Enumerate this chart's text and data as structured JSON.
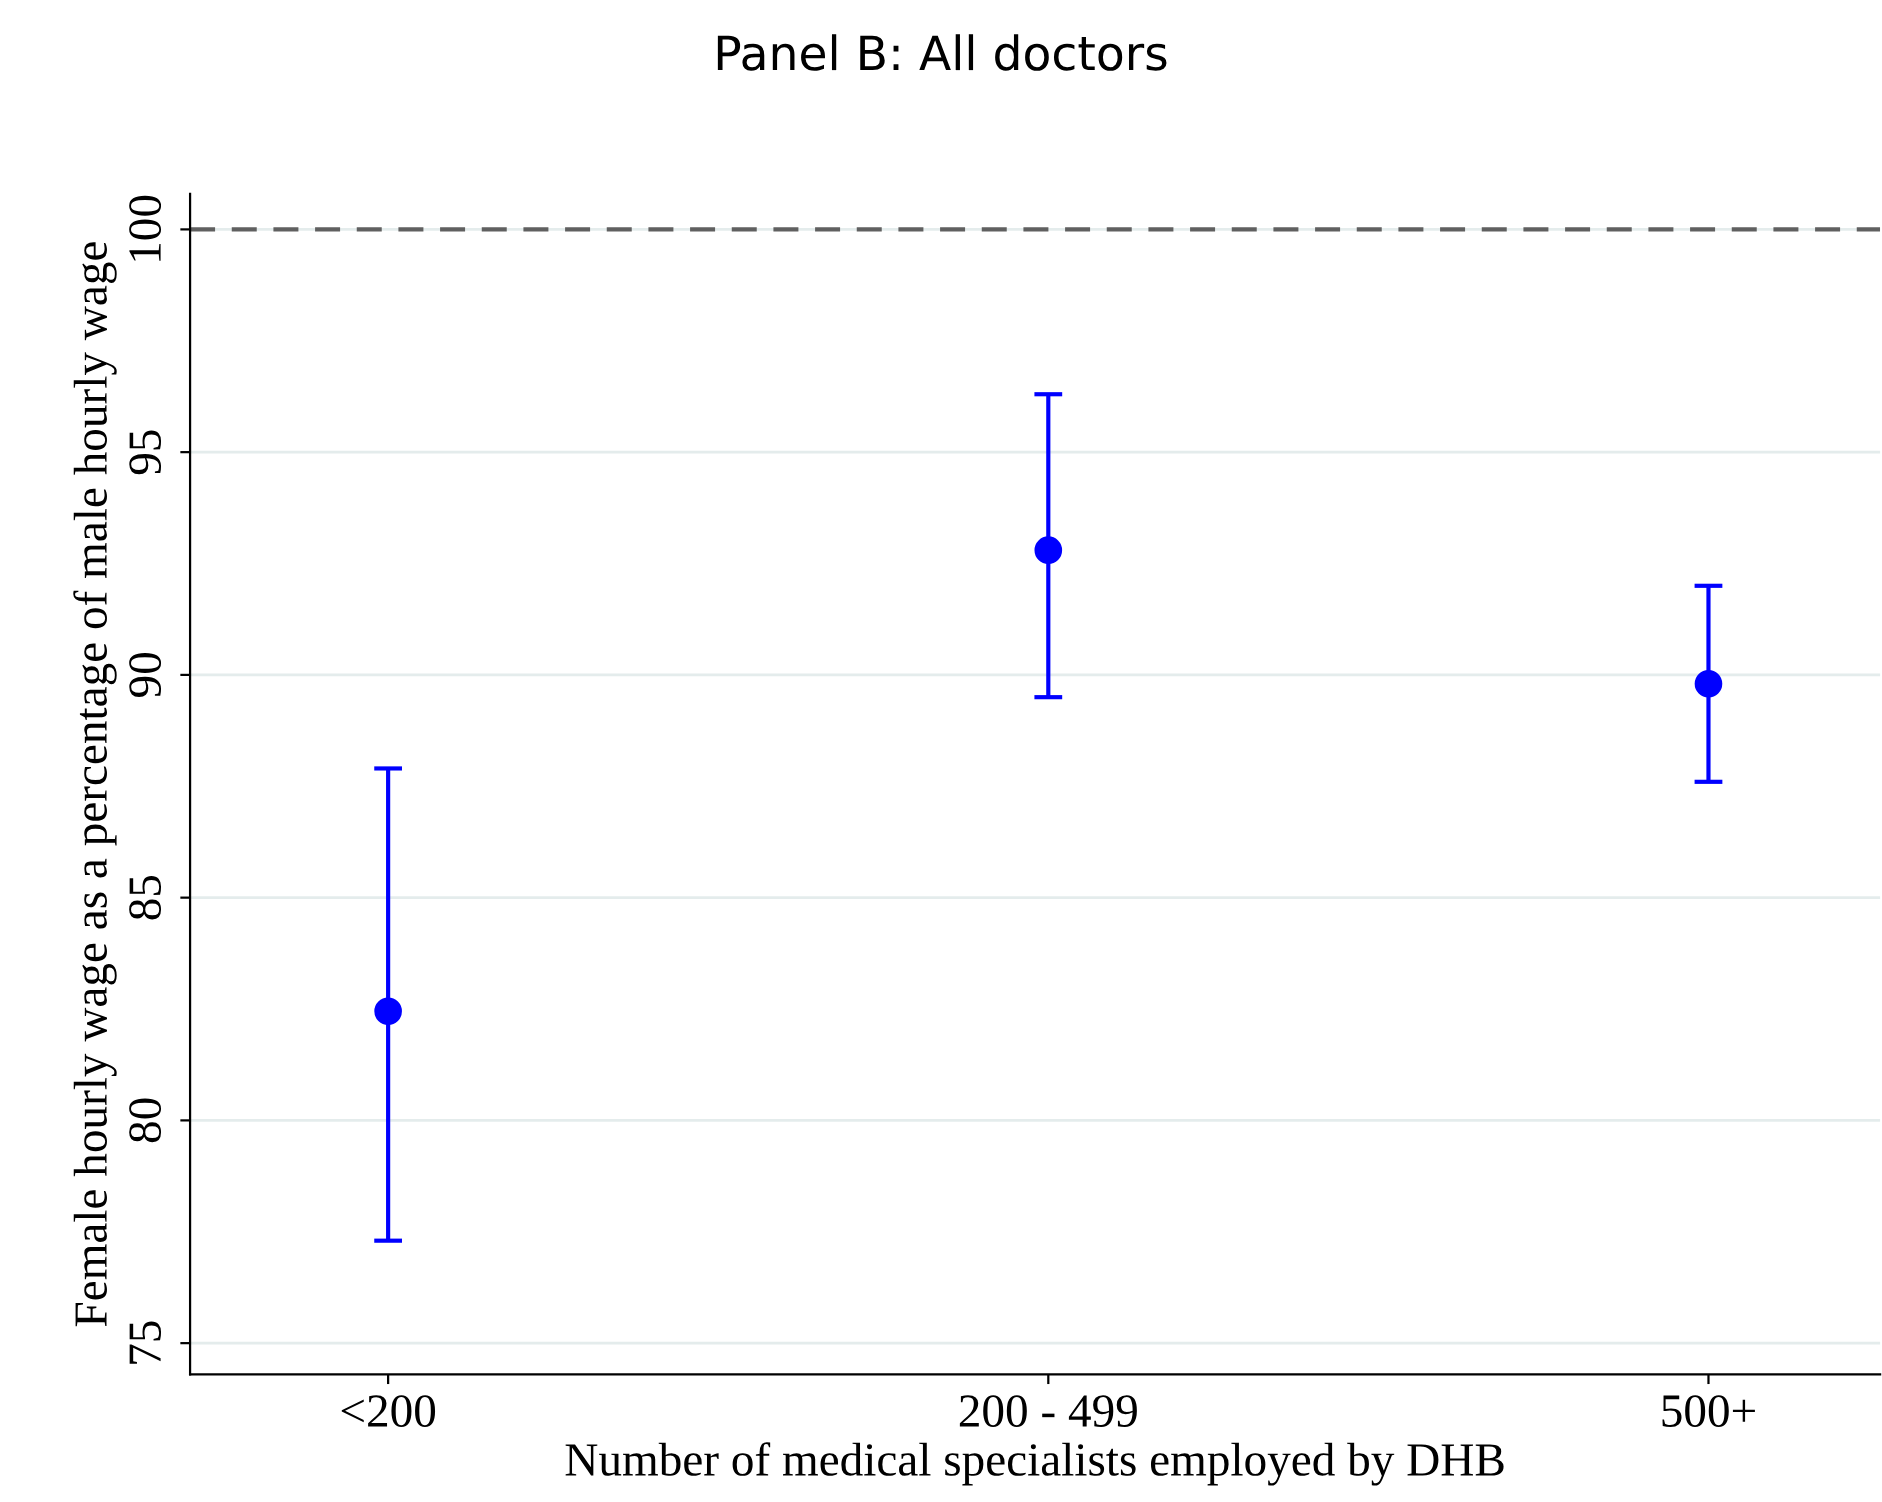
{
  "chart_data": {
    "type": "scatter",
    "title": "Panel B: All doctors",
    "xlabel": "Number of medical specialists employed by DHB",
    "ylabel": "Female hourly wage as a percentage of male hourly wage",
    "categories": [
      "<200",
      "200 - 499",
      "500+"
    ],
    "series": [
      {
        "color": "#0000ff",
        "values": [
          82.45,
          92.8,
          89.8
        ],
        "errors": [
          [
            77.3,
            87.9
          ],
          [
            89.5,
            96.3
          ],
          [
            87.6,
            92.0
          ]
        ]
      }
    ],
    "marker": "circle",
    "ylim": [
      74.3,
      100.8
    ],
    "yticks": [
      75,
      80,
      85,
      90,
      95,
      100
    ],
    "grid": "y",
    "ref_lines": [
      {
        "axis": "y",
        "value": 100,
        "color": "#606060",
        "line_style": "dashed"
      }
    ]
  }
}
